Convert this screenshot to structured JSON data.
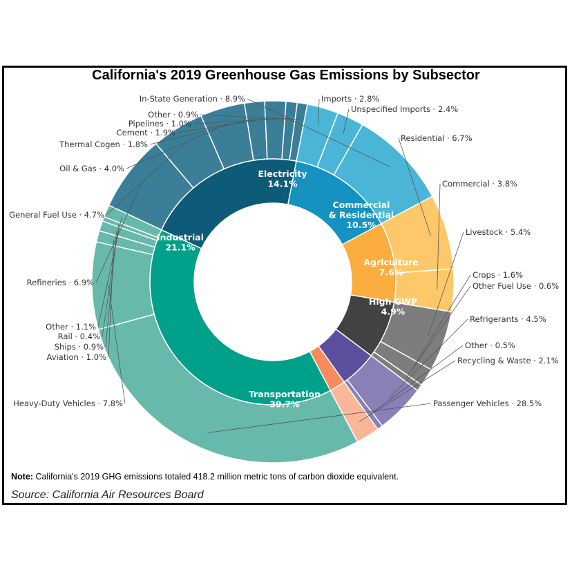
{
  "chart_data": {
    "type": "pie",
    "title": "California's 2019 Greenhouse Gas Emissions by Subsector",
    "note_label": "Note:",
    "note": "California's 2019 GHG emissions totaled 418.2 million metric tons of carbon dioxide equivalent.",
    "source": "Source: California Air Resources Board",
    "sectors": [
      {
        "name": "Electricity",
        "value": 14.1,
        "color": "#1592bf",
        "ring_color": "#4ab5d6",
        "subsectors": [
          {
            "name": "Imports",
            "value": 2.8
          },
          {
            "name": "Unspecified Imports",
            "value": 2.4
          },
          {
            "name": "In-State Generation",
            "value": 8.9
          }
        ]
      },
      {
        "name": "Commercial & Residential",
        "value": 10.5,
        "color": "#fbad3f",
        "ring_color": "#fdc86a",
        "subsectors": [
          {
            "name": "Residential",
            "value": 6.7
          },
          {
            "name": "Commercial",
            "value": 3.8
          }
        ]
      },
      {
        "name": "Agriculture",
        "value": 7.6,
        "color": "#424242",
        "ring_color": "#7d7d7d",
        "subsectors": [
          {
            "name": "Livestock",
            "value": 5.4
          },
          {
            "name": "Crops",
            "value": 1.6
          },
          {
            "name": "Other Fuel Use",
            "value": 0.6
          }
        ]
      },
      {
        "name": "High GWP",
        "value": 4.9,
        "color": "#5c4f9e",
        "ring_color": "#8880b7",
        "subsectors": [
          {
            "name": "Refrigerants",
            "value": 4.5
          },
          {
            "name": "Other",
            "value": 0.5
          }
        ]
      },
      {
        "name": "Recycling & Waste",
        "value": 2.1,
        "color": "#f68b5c",
        "ring_color": "#fbb697",
        "subsectors": [
          {
            "name": "Recycling & Waste",
            "value": 2.1
          }
        ]
      },
      {
        "name": "Transportation",
        "value": 39.7,
        "color": "#00a08a",
        "ring_color": "#66b9ab",
        "subsectors": [
          {
            "name": "Passenger Vehicles",
            "value": 28.5
          },
          {
            "name": "Heavy-Duty Vehicles",
            "value": 7.8
          },
          {
            "name": "Aviation",
            "value": 1.0
          },
          {
            "name": "Ships",
            "value": 0.9
          },
          {
            "name": "Rail",
            "value": 0.4
          },
          {
            "name": "Other",
            "value": 1.1
          }
        ]
      },
      {
        "name": "Industrial",
        "value": 21.1,
        "color": "#0e5a79",
        "ring_color": "#3b7e98",
        "subsectors": [
          {
            "name": "Refineries",
            "value": 6.9
          },
          {
            "name": "General Fuel Use",
            "value": 4.7
          },
          {
            "name": "Oil & Gas",
            "value": 4.0
          },
          {
            "name": "Thermal Cogen",
            "value": 1.8
          },
          {
            "name": "Cement",
            "value": 1.9
          },
          {
            "name": "Pipelines",
            "value": 1.0
          },
          {
            "name": "Other",
            "value": 0.9
          }
        ]
      }
    ]
  }
}
